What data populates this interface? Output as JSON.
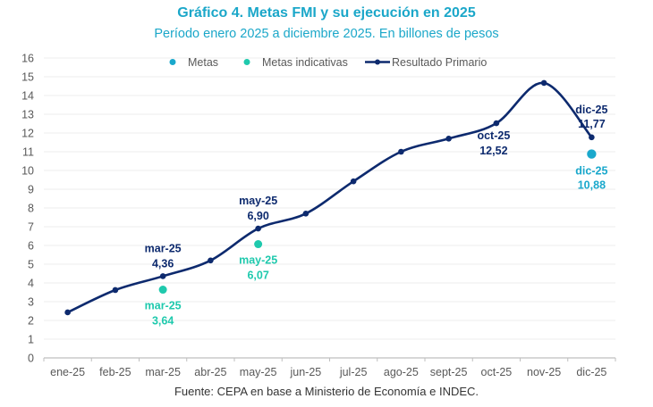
{
  "title": "Gráfico 4. Metas FMI y su ejecución en 2025",
  "subtitle": "Período enero 2025 a diciembre 2025. En billones de pesos",
  "source": "Fuente: CEPA en base a Ministerio de Economía e INDEC.",
  "colors": {
    "resultado": "#0d2a6e",
    "metas": "#1aa8cc",
    "metas_indicativas": "#1fc9ad",
    "grid": "#eeeeee",
    "axis": "#bfbfbf"
  },
  "chart_data": {
    "type": "line",
    "title": "Gráfico 4. Metas FMI y su ejecución en 2025",
    "subtitle": "Período enero 2025 a diciembre 2025. En billones de pesos",
    "xlabel": "",
    "ylabel": "",
    "ylim": [
      0,
      16
    ],
    "yticks": [
      "0",
      "1",
      "2",
      "3",
      "4",
      "5",
      "6",
      "7",
      "8",
      "9",
      "10",
      "11",
      "12",
      "13",
      "14",
      "15",
      "16"
    ],
    "grid": true,
    "legend_position": "top",
    "categories": [
      "ene-25",
      "feb-25",
      "mar-25",
      "abr-25",
      "may-25",
      "jun-25",
      "jul-25",
      "ago-25",
      "sept-25",
      "oct-25",
      "nov-25",
      "dic-25"
    ],
    "legend": [
      "Metas",
      "Metas indicativas",
      "Resultado Primario"
    ],
    "series": [
      {
        "name": "Resultado Primario",
        "type": "line",
        "values": [
          2.43,
          3.62,
          4.36,
          5.2,
          6.9,
          7.7,
          9.42,
          11.0,
          11.7,
          12.52,
          14.67,
          11.77
        ]
      },
      {
        "name": "Metas indicativas",
        "type": "scatter",
        "points": [
          {
            "category": "mar-25",
            "value": 3.64
          },
          {
            "category": "may-25",
            "value": 6.07
          }
        ]
      },
      {
        "name": "Metas",
        "type": "scatter",
        "points": [
          {
            "category": "dic-25",
            "value": 10.88
          }
        ]
      }
    ],
    "annotations": [
      {
        "series": "Resultado Primario",
        "category": "mar-25",
        "line1": "mar-25",
        "line2": "4,36",
        "pos": "above"
      },
      {
        "series": "Resultado Primario",
        "category": "may-25",
        "line1": "may-25",
        "line2": "6,90",
        "pos": "above"
      },
      {
        "series": "Resultado Primario",
        "category": "oct-25",
        "line1": "oct-25",
        "line2": "12,52",
        "pos": "below"
      },
      {
        "series": "Resultado Primario",
        "category": "dic-25",
        "line1": "dic-25",
        "line2": "11,77",
        "pos": "above"
      },
      {
        "series": "Metas indicativas",
        "category": "mar-25",
        "line1": "mar-25",
        "line2": "3,64",
        "pos": "below"
      },
      {
        "series": "Metas indicativas",
        "category": "may-25",
        "line1": "may-25",
        "line2": "6,07",
        "pos": "below"
      },
      {
        "series": "Metas",
        "category": "dic-25",
        "line1": "dic-25",
        "line2": "10,88",
        "pos": "below"
      }
    ]
  }
}
